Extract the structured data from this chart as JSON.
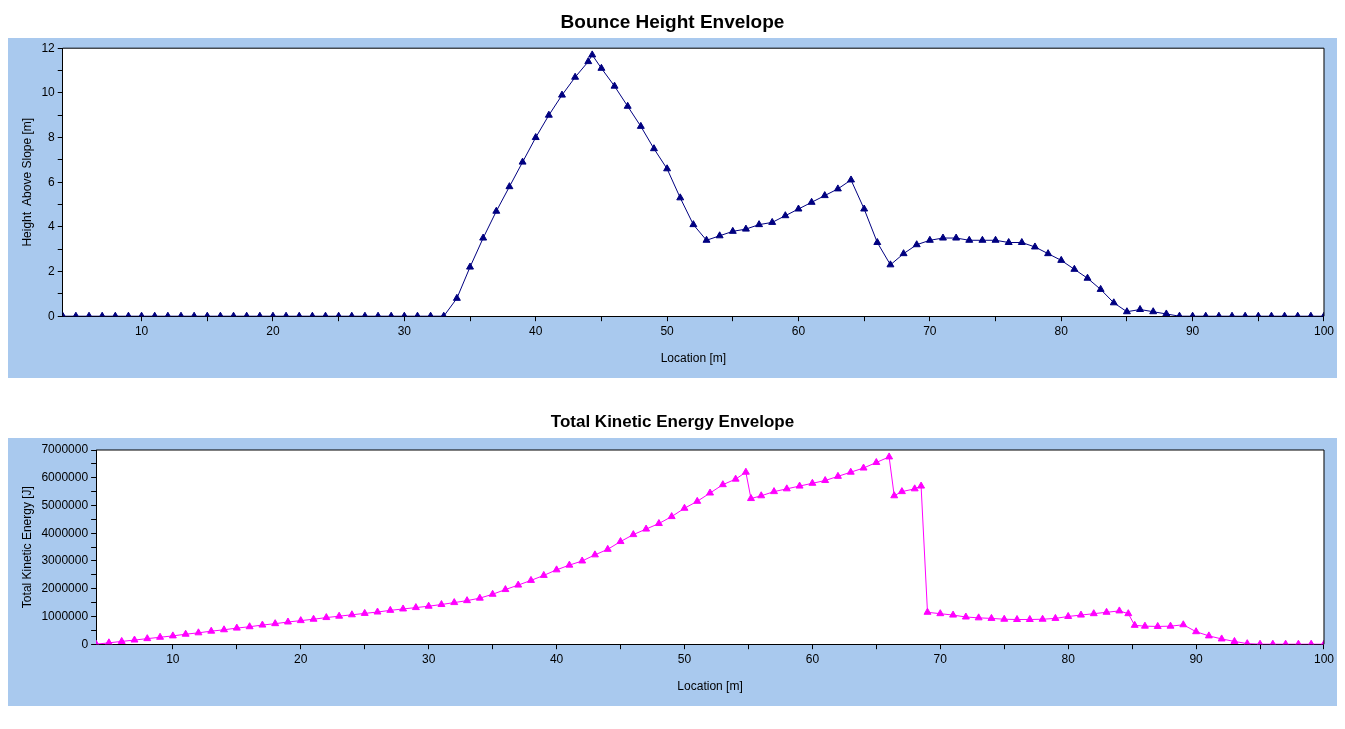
{
  "chart_data": [
    {
      "type": "line",
      "title": "Bounce Height Envelope",
      "xlabel": "Location [m]",
      "ylabel": "Height  Above Slope [m]",
      "x": [
        4,
        5,
        6,
        7,
        8,
        9,
        10,
        11,
        12,
        13,
        14,
        15,
        16,
        17,
        18,
        19,
        20,
        21,
        22,
        23,
        24,
        25,
        26,
        27,
        28,
        29,
        30,
        31,
        32,
        33,
        34,
        35,
        36,
        37,
        38,
        39,
        40,
        41,
        42,
        43,
        44,
        44.3,
        45,
        46,
        47,
        48,
        49,
        50,
        51,
        52,
        53,
        54,
        55,
        56,
        57,
        58,
        59,
        60,
        61,
        62,
        63,
        64,
        65,
        66,
        67,
        68,
        69,
        70,
        71,
        72,
        73,
        74,
        75,
        76,
        77,
        78,
        79,
        80,
        81,
        82,
        83,
        84,
        85,
        86,
        87,
        88,
        89,
        90,
        91,
        92,
        93,
        94,
        95,
        96,
        97,
        98,
        99,
        100
      ],
      "series": [
        {
          "color": "#000080",
          "values": [
            0,
            0,
            0,
            0,
            0,
            0,
            0,
            0,
            0,
            0,
            0,
            0,
            0,
            0,
            0,
            0,
            0,
            0,
            0,
            0,
            0,
            0,
            0,
            0,
            0,
            0,
            0,
            0,
            0,
            0,
            0.8,
            2.2,
            3.5,
            4.7,
            5.8,
            6.9,
            8.0,
            9.0,
            9.9,
            10.7,
            11.4,
            11.7,
            11.1,
            10.3,
            9.4,
            8.5,
            7.5,
            6.6,
            5.3,
            4.1,
            3.4,
            3.6,
            3.8,
            3.9,
            4.1,
            4.2,
            4.5,
            4.8,
            5.1,
            5.4,
            5.7,
            6.1,
            4.8,
            3.3,
            2.3,
            2.8,
            3.2,
            3.4,
            3.5,
            3.5,
            3.4,
            3.4,
            3.4,
            3.3,
            3.3,
            3.1,
            2.8,
            2.5,
            2.1,
            1.7,
            1.2,
            0.6,
            0.2,
            0.3,
            0.2,
            0.1,
            0,
            0,
            0,
            0,
            0,
            0,
            0,
            0,
            0,
            0,
            0,
            0
          ]
        }
      ],
      "xlim": [
        4,
        100
      ],
      "xticks": [
        10,
        {
          "value": 15,
          "label": null
        },
        20,
        {
          "value": 25,
          "label": null
        },
        30,
        {
          "value": 35,
          "label": null
        },
        40,
        {
          "value": 45,
          "label": null
        },
        50,
        {
          "value": 55,
          "label": null
        },
        60,
        {
          "value": 65,
          "label": null
        },
        70,
        {
          "value": 75,
          "label": null
        },
        80,
        {
          "value": 85,
          "label": null
        },
        90,
        {
          "value": 95,
          "label": null
        },
        100
      ],
      "ylim": [
        0,
        12
      ],
      "yticks": [
        0,
        {
          "value": 1,
          "label": null
        },
        2,
        {
          "value": 3,
          "label": null
        },
        4,
        {
          "value": 5,
          "label": null
        },
        6,
        {
          "value": 7,
          "label": null
        },
        8,
        {
          "value": 9,
          "label": null
        },
        10,
        {
          "value": 11,
          "label": null
        },
        12
      ],
      "marker": "triangle",
      "grid": false,
      "legend": false
    },
    {
      "type": "line",
      "title": "Total Kinetic Energy Envelope",
      "xlabel": "Location [m]",
      "ylabel": "Total Kinetic Energy [J]",
      "x": [
        4,
        5,
        6,
        7,
        8,
        9,
        10,
        11,
        12,
        13,
        14,
        15,
        16,
        17,
        18,
        19,
        20,
        21,
        22,
        23,
        24,
        25,
        26,
        27,
        28,
        29,
        30,
        31,
        32,
        33,
        34,
        35,
        36,
        37,
        38,
        39,
        40,
        41,
        42,
        43,
        44,
        45,
        46,
        47,
        48,
        49,
        50,
        51,
        52,
        53,
        54,
        54.8,
        55.2,
        56,
        57,
        58,
        59,
        60,
        61,
        62,
        63,
        64,
        65,
        66,
        66.4,
        67,
        68,
        68.5,
        69,
        70,
        71,
        72,
        73,
        74,
        75,
        76,
        77,
        78,
        79,
        80,
        81,
        82,
        83,
        84,
        84.7,
        85.2,
        86,
        87,
        88,
        89,
        90,
        91,
        92,
        93,
        94,
        95,
        96,
        97,
        98,
        99,
        100
      ],
      "series": [
        {
          "color": "#ff00ff",
          "values": [
            0,
            50000,
            100000,
            150000,
            200000,
            250000,
            300000,
            360000,
            410000,
            470000,
            520000,
            580000,
            630000,
            690000,
            740000,
            800000,
            850000,
            900000,
            960000,
            1010000,
            1060000,
            1110000,
            1160000,
            1220000,
            1270000,
            1320000,
            1370000,
            1430000,
            1500000,
            1570000,
            1660000,
            1800000,
            1970000,
            2130000,
            2300000,
            2480000,
            2680000,
            2850000,
            3000000,
            3220000,
            3420000,
            3700000,
            3950000,
            4150000,
            4350000,
            4600000,
            4900000,
            5150000,
            5450000,
            5750000,
            5950000,
            6200000,
            5250000,
            5350000,
            5500000,
            5600000,
            5700000,
            5800000,
            5900000,
            6050000,
            6200000,
            6350000,
            6550000,
            6750000,
            5350000,
            5500000,
            5600000,
            5700000,
            1150000,
            1100000,
            1050000,
            980000,
            950000,
            930000,
            900000,
            890000,
            890000,
            900000,
            930000,
            1000000,
            1050000,
            1100000,
            1150000,
            1200000,
            1100000,
            680000,
            650000,
            640000,
            650000,
            700000,
            450000,
            300000,
            190000,
            100000,
            20000,
            0,
            0,
            0,
            0,
            0,
            0
          ]
        }
      ],
      "xlim": [
        4,
        100
      ],
      "xticks": [
        10,
        {
          "value": 15,
          "label": null
        },
        20,
        {
          "value": 25,
          "label": null
        },
        30,
        {
          "value": 35,
          "label": null
        },
        40,
        {
          "value": 45,
          "label": null
        },
        50,
        {
          "value": 55,
          "label": null
        },
        60,
        {
          "value": 65,
          "label": null
        },
        70,
        {
          "value": 75,
          "label": null
        },
        80,
        {
          "value": 85,
          "label": null
        },
        90,
        {
          "value": 95,
          "label": null
        },
        100
      ],
      "ylim": [
        0,
        7000000
      ],
      "yticks": [
        0,
        {
          "value": 500000,
          "label": null
        },
        1000000,
        {
          "value": 1500000,
          "label": null
        },
        2000000,
        {
          "value": 2500000,
          "label": null
        },
        3000000,
        {
          "value": 3500000,
          "label": null
        },
        4000000,
        {
          "value": 4500000,
          "label": null
        },
        5000000,
        {
          "value": 5500000,
          "label": null
        },
        6000000,
        {
          "value": 6500000,
          "label": null
        },
        7000000
      ],
      "marker": "triangle",
      "grid": false,
      "legend": false
    }
  ]
}
